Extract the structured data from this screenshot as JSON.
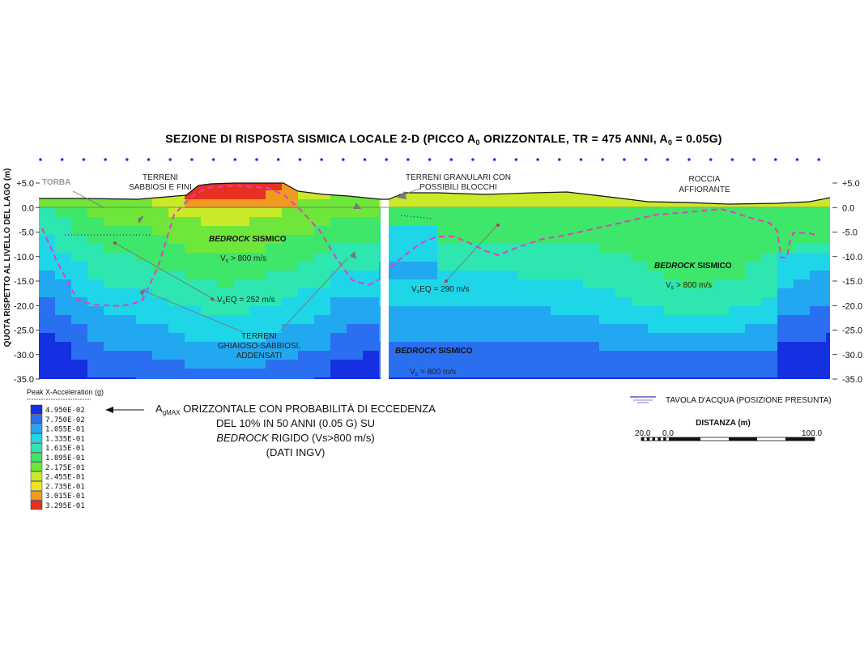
{
  "chart_data": {
    "type": "heatmap",
    "title": "SEZIONE DI RISPOSTA SISMICA LOCALE 2-D (PICCO A",
    "title_sub": "0",
    "title_rest": " ORIZZONTALE, TR = 475 ANNI, A",
    "title_sub2": "0",
    "title_end": " = 0.05G)",
    "ylabel": "QUOTA RISPETTO AL LIVELLO DEL LAGO (m)",
    "ylim": [
      -35.0,
      5.0
    ],
    "y_ticks": [
      "+5.0",
      "0.0",
      "-5.0",
      "-10.0",
      "-15.0",
      "-20.0",
      "-25.0",
      "-30.0",
      "-35.0"
    ],
    "y_ticks_right": [
      "+5.0",
      "0.0",
      "-5.0",
      "-10.0",
      "-15.0",
      "-20.0",
      "-25.0",
      "-30.0",
      "-35.0"
    ],
    "y_tick_values": [
      5,
      0,
      -5,
      -10,
      -15,
      -20,
      -25,
      -30,
      -35
    ],
    "legend": {
      "title": "Peak X-Acceleration (g)",
      "levels": [
        {
          "label": "4.950E-02",
          "color": "#1530e0"
        },
        {
          "label": "7.750E-02",
          "color": "#2a6ff0"
        },
        {
          "label": "1.055E-01",
          "color": "#22a8f0"
        },
        {
          "label": "1.335E-01",
          "color": "#1ed6e8"
        },
        {
          "label": "1.615E-01",
          "color": "#2ee6b0"
        },
        {
          "label": "1.895E-01",
          "color": "#3ee66a"
        },
        {
          "label": "2.175E-01",
          "color": "#6fe63a"
        },
        {
          "label": "2.455E-01",
          "color": "#c8ea28"
        },
        {
          "label": "2.735E-01",
          "color": "#f0e420"
        },
        {
          "label": "3.015E-01",
          "color": "#f09a20"
        },
        {
          "label": "3.295E-01",
          "color": "#e83020"
        }
      ]
    },
    "annotations": {
      "torba": "TORBA",
      "terreni_sabbiosi_1": "TERRENI",
      "terreni_sabbiosi_2": "SABBIOSI E FINI",
      "terreni_granulari_1": "TERRENI GRANULARI CON",
      "terreni_granulari_2": "POSSIBILI BLOCCHI",
      "roccia_1": "ROCCIA",
      "roccia_2": "AFFIORANTE",
      "bedrock_1": "BEDROCK",
      "bedrock_1b": " SISMICO",
      "vs_1": "V",
      "vs_1_sub": "s",
      "vs_1_val": " > 800 m/s",
      "veq_1": "V",
      "veq_1_sub": "s",
      "veq_1_val": "EQ =  252 m/s",
      "ghiaiosi_1": "TERRENI",
      "ghiaiosi_2": "GHIAIOSO-SABBIOSI,",
      "ghiaiosi_3": "ADDENSATI",
      "veq_2": "V",
      "veq_2_sub": "s",
      "veq_2_val": "EQ =  290 m/s",
      "bedrock_2": "BEDROCK",
      "bedrock_2b": " SISMICO",
      "vs_2": "V",
      "vs_2_sub": "s",
      "vs_2_val": " > 800 m/s",
      "bedrock_3": "BEDROCK",
      "bedrock_3b": " SISMICO",
      "vs_3": "V",
      "vs_3_sub": "s",
      "vs_3_val": " > 800 m/s"
    },
    "note": {
      "line1_a": "A",
      "line1_sub": "gMAX",
      "line1_b": " ORIZZONTALE CON PROBABILITÀ DI ECCEDENZA",
      "line2": "DEL 10% IN 50 ANNI (0.05 G) SU",
      "line3_a": "BEDROCK",
      "line3_b": " RIGIDO (Vs>800 m/s)",
      "line4": "(DATI INGV)"
    },
    "water_table_label": "TAVOLA D'ACQUA (POSIZIONE PRESUNTA)",
    "scale": {
      "title": "DISTANZA (m)",
      "labels": [
        "20.0",
        "0.0",
        "100.0"
      ]
    }
  },
  "colors": {
    "dashed_boundary": "#e040c0",
    "topography": "#111111",
    "dots": "#1a3bd8"
  }
}
